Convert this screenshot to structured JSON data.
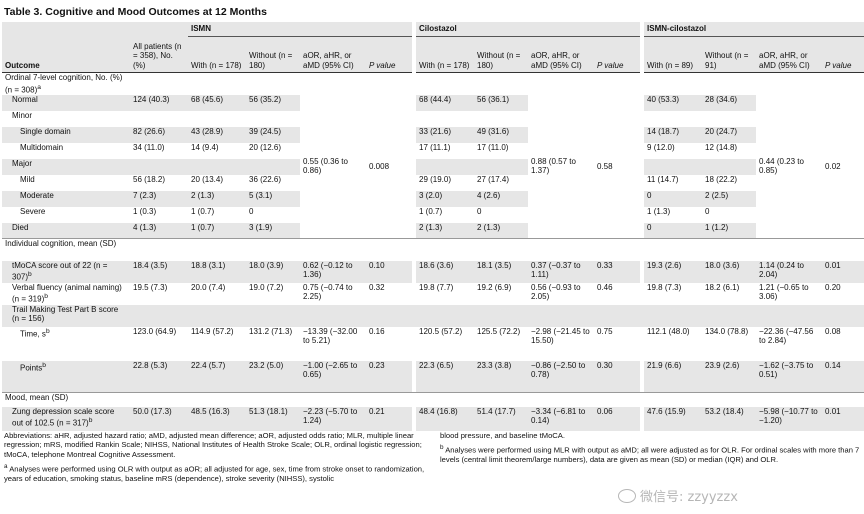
{
  "title": "Table 3. Cognitive and Mood Outcomes at 12 Months",
  "header": {
    "groups": [
      "ISMN",
      "Cilostazol",
      "ISMN-cilostazol"
    ],
    "outcome": "Outcome",
    "all_patients": "All patients (n = 358), No. (%)",
    "ismn": {
      "with": "With (n = 178)",
      "without": "Without (n = 180)",
      "effect": "aOR, aHR, or aMD (95% CI)",
      "p": "P value"
    },
    "cilo": {
      "with": "With (n = 178)",
      "without": "Without (n = 180)",
      "effect": "aOR, aHR, or aMD (95% CI)",
      "p": "P value"
    },
    "combo": {
      "with": "With (n = 89)",
      "without": "Without (n = 91)",
      "effect": "aOR, aHR, or aMD (95% CI)",
      "p": "P value"
    }
  },
  "ordinal": {
    "label": "Ordinal 7-level cognition, No. (%) (n = 308)",
    "sup": "a",
    "rows": [
      {
        "label": "Normal",
        "all": "124 (40.3)",
        "i_with": "68 (45.6)",
        "i_without": "56 (35.2)",
        "c_with": "68 (44.4)",
        "c_without": "56 (36.1)",
        "x_with": "40 (53.3)",
        "x_without": "28 (34.6)"
      },
      {
        "label": "Minor",
        "all": "",
        "i_with": "",
        "i_without": "",
        "c_with": "",
        "c_without": "",
        "x_with": "",
        "x_without": ""
      },
      {
        "label": "Single domain",
        "all": "82 (26.6)",
        "i_with": "43 (28.9)",
        "i_without": "39 (24.5)",
        "c_with": "33 (21.6)",
        "c_without": "49 (31.6)",
        "x_with": "14 (18.7)",
        "x_without": "20 (24.7)"
      },
      {
        "label": "Multidomain",
        "all": "34 (11.0)",
        "i_with": "14 (9.4)",
        "i_without": "20 (12.6)",
        "c_with": "17 (11.1)",
        "c_without": "17 (11.0)",
        "x_with": "9 (12.0)",
        "x_without": "12 (14.8)"
      },
      {
        "label": "Major",
        "all": "",
        "i_with": "",
        "i_without": "",
        "c_with": "",
        "c_without": "",
        "x_with": "",
        "x_without": ""
      },
      {
        "label": "Mild",
        "all": "56 (18.2)",
        "i_with": "20 (13.4)",
        "i_without": "36 (22.6)",
        "c_with": "29 (19.0)",
        "c_without": "27 (17.4)",
        "x_with": "11 (14.7)",
        "x_without": "18 (22.2)"
      },
      {
        "label": "Moderate",
        "all": "7 (2.3)",
        "i_with": "2 (1.3)",
        "i_without": "5 (3.1)",
        "c_with": "3 (2.0)",
        "c_without": "4 (2.6)",
        "x_with": "0",
        "x_without": "2 (2.5)"
      },
      {
        "label": "Severe",
        "all": "1 (0.3)",
        "i_with": "1 (0.7)",
        "i_without": "0",
        "c_with": "1 (0.7)",
        "c_without": "0",
        "x_with": "1 (1.3)",
        "x_without": "0"
      },
      {
        "label": "Died",
        "all": "4 (1.3)",
        "i_with": "1 (0.7)",
        "i_without": "3 (1.9)",
        "c_with": "2 (1.3)",
        "c_without": "2 (1.3)",
        "x_with": "0",
        "x_without": "1 (1.2)"
      }
    ],
    "i_effect": "0.55 (0.36 to 0.86)",
    "i_p": "0.008",
    "c_effect": "0.88 (0.57 to 1.37)",
    "c_p": "0.58",
    "x_effect": "0.44 (0.23 to 0.85)",
    "x_p": "0.02"
  },
  "individual": {
    "label": "Individual cognition, mean (SD)",
    "tmoca": {
      "label": "tMoCA score out of 22 (n = 307)",
      "sup": "b",
      "all": "18.4 (3.5)",
      "i_with": "18.8 (3.1)",
      "i_without": "18.0 (3.9)",
      "i_effect": "0.62 (−0.12 to 1.36)",
      "i_p": "0.10",
      "c_with": "18.6 (3.6)",
      "c_without": "18.1 (3.5)",
      "c_effect": "0.37 (−0.37 to 1.11)",
      "c_p": "0.33",
      "x_with": "19.3 (2.6)",
      "x_without": "18.0 (3.6)",
      "x_effect": "1.14 (0.24 to 2.04)",
      "x_p": "0.01"
    },
    "verbal": {
      "label": "Verbal fluency (animal naming) (n = 319)",
      "sup": "b",
      "all": "19.5 (7.3)",
      "i_with": "20.0 (7.4)",
      "i_without": "19.0 (7.2)",
      "i_effect": "0.75 (−0.74 to 2.25)",
      "i_p": "0.32",
      "c_with": "19.8 (7.7)",
      "c_without": "19.2 (6.9)",
      "c_effect": "0.56 (−0.93 to 2.05)",
      "c_p": "0.46",
      "x_with": "19.8 (7.3)",
      "x_without": "18.2 (6.1)",
      "x_effect": "1.21 (−0.65 to 3.06)",
      "x_p": "0.20"
    },
    "trail": "Trail Making Test Part B score (n = 156)",
    "time": {
      "label": "Time, s",
      "sup": "b",
      "all": "123.0 (64.9)",
      "i_with": "114.9 (57.2)",
      "i_without": "131.2 (71.3)",
      "i_effect": "−13.39 (−32.00 to 5.21)",
      "i_p": "0.16",
      "c_with": "120.5 (57.2)",
      "c_without": "125.5 (72.2)",
      "c_effect": "−2.98 (−21.45 to 15.50)",
      "c_p": "0.75",
      "x_with": "112.1 (48.0)",
      "x_without": "134.0 (78.8)",
      "x_effect": "−22.36 (−47.56 to 2.84)",
      "x_p": "0.08"
    },
    "points": {
      "label": "Points",
      "sup": "b",
      "all": "22.8 (5.3)",
      "i_with": "22.4 (5.7)",
      "i_without": "23.2 (5.0)",
      "i_effect": "−1.00 (−2.65 to 0.65)",
      "i_p": "0.23",
      "c_with": "22.3 (6.5)",
      "c_without": "23.3 (3.8)",
      "c_effect": "−0.86 (−2.50 to 0.78)",
      "c_p": "0.30",
      "x_with": "21.9 (6.6)",
      "x_without": "23.9 (2.6)",
      "x_effect": "−1.62 (−3.75 to 0.51)",
      "x_p": "0.14"
    }
  },
  "mood": {
    "label": "Mood, mean (SD)",
    "zung": {
      "label": "Zung depression scale score out of 102.5 (n = 317)",
      "sup": "b",
      "all": "50.0 (17.3)",
      "i_with": "48.5 (16.3)",
      "i_without": "51.3 (18.1)",
      "i_effect": "−2.23 (−5.70 to 1.24)",
      "i_p": "0.21",
      "c_with": "48.4 (16.8)",
      "c_without": "51.4 (17.7)",
      "c_effect": "−3.34 (−6.81 to 0.14)",
      "c_p": "0.06",
      "x_with": "47.6 (15.9)",
      "x_without": "53.2 (18.4)",
      "x_effect": "−5.98 (−10.77 to −1.20)",
      "x_p": "0.01"
    }
  },
  "footnotes": {
    "abbrev": "Abbreviations: aHR, adjusted hazard ratio; aMD, adjusted mean difference; aOR, adjusted odds ratio; MLR, multiple linear regression; mRS, modified Rankin Scale; NIHSS, National Institutes of Health Stroke Scale; OLR, ordinal logistic regression; tMoCA, telephone Montreal Cognitive Assessment.",
    "a": "Analyses were performed using OLR with output as aOR; all adjusted for age, sex, time from stroke onset to randomization, years of education, smoking status, baseline mRS (dependence), stroke severity (NIHSS), systolic",
    "a_cont": "blood pressure, and baseline tMoCA.",
    "b": "Analyses were performed using MLR with output as aMD; all were adjusted as for OLR. For ordinal scales with more than 7 levels (central limit theorem/large numbers), data are given as mean (SD) or median (IQR) and OLR.",
    "a_mark": "a",
    "b_mark": "b"
  },
  "watermark": "微信号: zzyyzzx"
}
